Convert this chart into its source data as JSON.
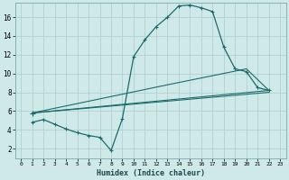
{
  "xlabel": "Humidex (Indice chaleur)",
  "xlim": [
    -0.5,
    23.5
  ],
  "ylim": [
    1.0,
    17.5
  ],
  "xticks": [
    0,
    1,
    2,
    3,
    4,
    5,
    6,
    7,
    8,
    9,
    10,
    11,
    12,
    13,
    14,
    15,
    16,
    17,
    18,
    19,
    20,
    21,
    22,
    23
  ],
  "yticks": [
    2,
    4,
    6,
    8,
    10,
    12,
    14,
    16
  ],
  "bg_color": "#cfe9e9",
  "grid_color": "#b0d0d0",
  "line_color": "#1a6b6b",
  "line1_x": [
    1,
    2,
    3,
    4,
    5,
    6,
    7,
    8,
    9,
    10,
    11,
    12,
    13,
    14,
    15,
    16,
    17,
    18,
    19,
    20,
    21,
    22
  ],
  "line1_y": [
    4.8,
    5.1,
    4.6,
    4.1,
    3.7,
    3.4,
    3.2,
    1.8,
    5.2,
    11.8,
    13.6,
    15.0,
    16.0,
    17.2,
    17.3,
    17.0,
    16.6,
    12.8,
    10.5,
    10.2,
    8.5,
    8.2
  ],
  "line2_x": [
    1,
    22
  ],
  "line2_y": [
    5.8,
    8.2
  ],
  "line3_x": [
    1,
    22
  ],
  "line3_y": [
    5.8,
    8.0
  ],
  "line4_x": [
    1,
    13,
    20,
    22
  ],
  "line4_y": [
    5.8,
    8.8,
    10.5,
    8.2
  ],
  "start_x": 1,
  "start_y": 5.8
}
